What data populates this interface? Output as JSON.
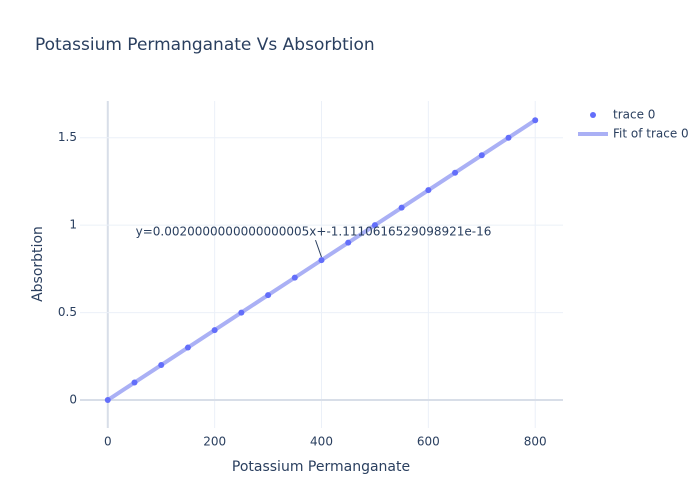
{
  "chart_data": {
    "type": "scatter",
    "title": "Potassium Permanganate Vs Absorbtion",
    "x_label": "Potassium Permanganate",
    "y_label": "Absorbtion",
    "x": [
      0,
      50,
      100,
      150,
      200,
      250,
      300,
      350,
      400,
      450,
      500,
      550,
      600,
      650,
      700,
      750,
      800
    ],
    "series": [
      {
        "name": "trace 0",
        "mode": "markers",
        "color": "#636efa",
        "values": [
          0,
          0.1,
          0.2,
          0.3,
          0.4,
          0.5,
          0.6,
          0.7,
          0.8,
          0.9,
          1.0,
          1.1,
          1.2,
          1.3,
          1.4,
          1.5,
          1.6
        ]
      },
      {
        "name": "Fit of trace 0",
        "mode": "lines",
        "color": "#aab0f5",
        "values": [
          0,
          0.1,
          0.2,
          0.3,
          0.4,
          0.5,
          0.6,
          0.7,
          0.8,
          0.9,
          1.0,
          1.1,
          1.2,
          1.3,
          1.4,
          1.5,
          1.6
        ]
      }
    ],
    "annotation": {
      "text": "y=0.0020000000000000005x+-1.1110616529098921e-16",
      "x": 400,
      "y": 0.8
    },
    "xlim": [
      -52,
      852
    ],
    "ylim": [
      -0.16,
      1.71
    ],
    "xticks": [
      0,
      200,
      400,
      600,
      800
    ],
    "yticks": [
      0,
      0.5,
      1,
      1.5
    ],
    "grid": true
  }
}
